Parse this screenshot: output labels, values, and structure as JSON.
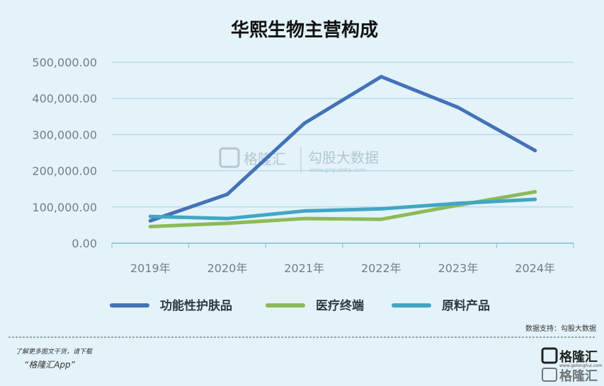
{
  "chart_data": {
    "type": "line",
    "title": "华熙生物主营构成",
    "categories": [
      "2019年",
      "2020年",
      "2021年",
      "2022年",
      "2023年",
      "2024年"
    ],
    "y_ticks": [
      "0.00",
      "100,000.00",
      "200,000.00",
      "300,000.00",
      "400,000.00",
      "500,000.00"
    ],
    "ylim": [
      0,
      500000
    ],
    "grid": true,
    "legend_position": "bottom",
    "series": [
      {
        "name": "功能性护肤品",
        "color": "#4472b8",
        "values": [
          62000,
          135000,
          331000,
          460000,
          375000,
          256000
        ]
      },
      {
        "name": "医疗终端",
        "color": "#8dba56",
        "values": [
          46000,
          55000,
          68000,
          66000,
          105000,
          142000
        ]
      },
      {
        "name": "原料产品",
        "color": "#41a6c4",
        "values": [
          74000,
          68000,
          89000,
          95000,
          110000,
          121000
        ]
      }
    ]
  },
  "source_text": "数据支持：勾股大数据",
  "footer": {
    "line1": "了解更多图文干货，请下载",
    "line2": "“格隆汇App”"
  },
  "watermark": {
    "brand": "格隆汇",
    "partner": "勾股大数据",
    "partner_url": "www.gogudata.com"
  },
  "logo": {
    "name": "格隆汇",
    "url": "www.gelonghui.com"
  }
}
